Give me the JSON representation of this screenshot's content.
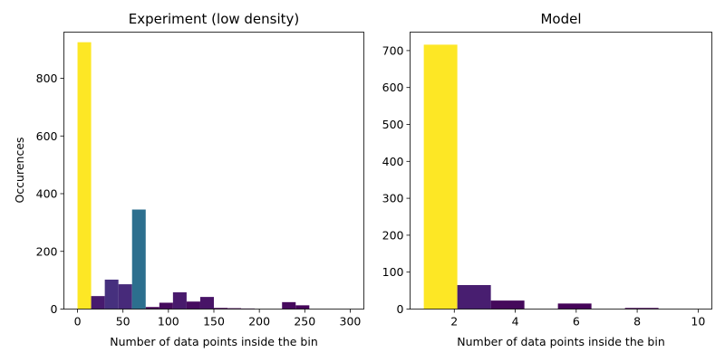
{
  "chart_data": [
    {
      "type": "bar",
      "title": "Experiment (low density)",
      "xlabel": "Number of data points inside the bin",
      "ylabel": "Occurences",
      "xlim": [
        -15,
        315
      ],
      "ylim": [
        0,
        960
      ],
      "xticks": [
        0,
        50,
        100,
        150,
        200,
        250,
        300
      ],
      "yticks": [
        0,
        200,
        400,
        600,
        800
      ],
      "bin_width": 15,
      "grid": false,
      "bars": [
        {
          "x": 0,
          "value": 925,
          "color": "#fde725"
        },
        {
          "x": 15,
          "value": 45,
          "color": "#471a6e"
        },
        {
          "x": 30,
          "value": 102,
          "color": "#46307e"
        },
        {
          "x": 45,
          "value": 86,
          "color": "#472a7a"
        },
        {
          "x": 60,
          "value": 345,
          "color": "#2c6f8e"
        },
        {
          "x": 75,
          "value": 7,
          "color": "#440154"
        },
        {
          "x": 90,
          "value": 22,
          "color": "#450b5c"
        },
        {
          "x": 105,
          "value": 58,
          "color": "#481a6c"
        },
        {
          "x": 120,
          "value": 26,
          "color": "#460c5f"
        },
        {
          "x": 135,
          "value": 42,
          "color": "#481467"
        },
        {
          "x": 150,
          "value": 4,
          "color": "#440154"
        },
        {
          "x": 165,
          "value": 3,
          "color": "#440154"
        },
        {
          "x": 180,
          "value": 2,
          "color": "#440154"
        },
        {
          "x": 225,
          "value": 24,
          "color": "#460a5d"
        },
        {
          "x": 240,
          "value": 13,
          "color": "#450559"
        }
      ]
    },
    {
      "type": "bar",
      "title": "Model",
      "xlabel": "Number of data points inside the bin",
      "ylabel": "",
      "xlim": [
        0.55,
        10.45
      ],
      "ylim": [
        0,
        750
      ],
      "xticks": [
        2,
        4,
        6,
        8,
        10
      ],
      "yticks": [
        0,
        100,
        200,
        300,
        400,
        500,
        600,
        700
      ],
      "bin_width": 1.1,
      "grid": false,
      "bars": [
        {
          "x": 1.0,
          "value": 716,
          "color": "#fde725"
        },
        {
          "x": 2.1,
          "value": 65,
          "color": "#481e70"
        },
        {
          "x": 3.2,
          "value": 23,
          "color": "#450a5b"
        },
        {
          "x": 5.4,
          "value": 15,
          "color": "#450559"
        },
        {
          "x": 7.6,
          "value": 3,
          "color": "#440154"
        }
      ]
    }
  ]
}
